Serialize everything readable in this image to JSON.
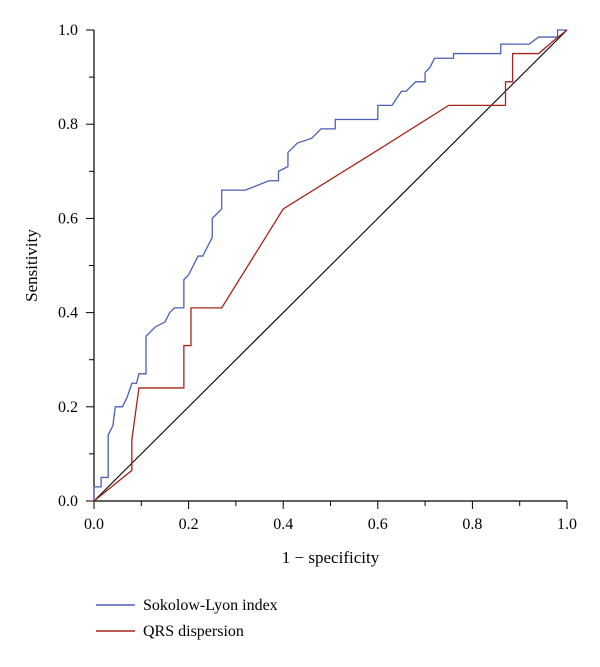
{
  "chart_data": {
    "type": "line",
    "title": "",
    "xlabel": "1 − specificity",
    "ylabel": "Sensitivity",
    "xlim": [
      0,
      1
    ],
    "ylim": [
      0,
      1
    ],
    "x_ticks": [
      "0.0",
      "0.2",
      "0.4",
      "0.6",
      "0.8",
      "1.0"
    ],
    "y_ticks": [
      "0.0",
      "0.2",
      "0.4",
      "0.6",
      "0.8",
      "1.0"
    ],
    "grid": false,
    "legend_position": "bottom-left",
    "reference_line": {
      "from": [
        0,
        0
      ],
      "to": [
        1,
        1
      ],
      "color": "#000000"
    },
    "series": [
      {
        "name": "Sokolow-Lyon index",
        "color": "#4a5fb8",
        "points": [
          [
            0,
            0
          ],
          [
            0,
            0.03
          ],
          [
            0.015,
            0.03
          ],
          [
            0.015,
            0.05
          ],
          [
            0.03,
            0.05
          ],
          [
            0.03,
            0.14
          ],
          [
            0.04,
            0.16
          ],
          [
            0.045,
            0.2
          ],
          [
            0.06,
            0.2
          ],
          [
            0.07,
            0.22
          ],
          [
            0.08,
            0.25
          ],
          [
            0.09,
            0.25
          ],
          [
            0.095,
            0.27
          ],
          [
            0.11,
            0.27
          ],
          [
            0.11,
            0.35
          ],
          [
            0.12,
            0.36
          ],
          [
            0.13,
            0.37
          ],
          [
            0.15,
            0.38
          ],
          [
            0.16,
            0.4
          ],
          [
            0.17,
            0.41
          ],
          [
            0.19,
            0.41
          ],
          [
            0.19,
            0.47
          ],
          [
            0.2,
            0.48
          ],
          [
            0.22,
            0.52
          ],
          [
            0.23,
            0.52
          ],
          [
            0.25,
            0.56
          ],
          [
            0.25,
            0.6
          ],
          [
            0.27,
            0.62
          ],
          [
            0.27,
            0.66
          ],
          [
            0.32,
            0.66
          ],
          [
            0.37,
            0.68
          ],
          [
            0.39,
            0.68
          ],
          [
            0.39,
            0.7
          ],
          [
            0.41,
            0.71
          ],
          [
            0.41,
            0.74
          ],
          [
            0.43,
            0.76
          ],
          [
            0.46,
            0.77
          ],
          [
            0.48,
            0.79
          ],
          [
            0.51,
            0.79
          ],
          [
            0.51,
            0.81
          ],
          [
            0.6,
            0.81
          ],
          [
            0.6,
            0.84
          ],
          [
            0.63,
            0.84
          ],
          [
            0.65,
            0.87
          ],
          [
            0.66,
            0.87
          ],
          [
            0.68,
            0.89
          ],
          [
            0.7,
            0.89
          ],
          [
            0.7,
            0.91
          ],
          [
            0.71,
            0.92
          ],
          [
            0.72,
            0.94
          ],
          [
            0.76,
            0.94
          ],
          [
            0.76,
            0.95
          ],
          [
            0.86,
            0.95
          ],
          [
            0.86,
            0.97
          ],
          [
            0.92,
            0.97
          ],
          [
            0.94,
            0.985
          ],
          [
            0.98,
            0.985
          ],
          [
            0.98,
            1.0
          ],
          [
            1.0,
            1.0
          ]
        ]
      },
      {
        "name": "QRS dispersion",
        "color": "#a3251b",
        "points": [
          [
            0,
            0
          ],
          [
            0.08,
            0.065
          ],
          [
            0.08,
            0.13
          ],
          [
            0.095,
            0.24
          ],
          [
            0.19,
            0.24
          ],
          [
            0.19,
            0.33
          ],
          [
            0.205,
            0.33
          ],
          [
            0.205,
            0.41
          ],
          [
            0.27,
            0.41
          ],
          [
            0.4,
            0.62
          ],
          [
            0.6,
            0.745
          ],
          [
            0.75,
            0.84
          ],
          [
            0.87,
            0.84
          ],
          [
            0.87,
            0.89
          ],
          [
            0.885,
            0.89
          ],
          [
            0.885,
            0.95
          ],
          [
            0.94,
            0.95
          ],
          [
            0.975,
            0.98
          ],
          [
            1.0,
            1.0
          ]
        ]
      }
    ]
  }
}
